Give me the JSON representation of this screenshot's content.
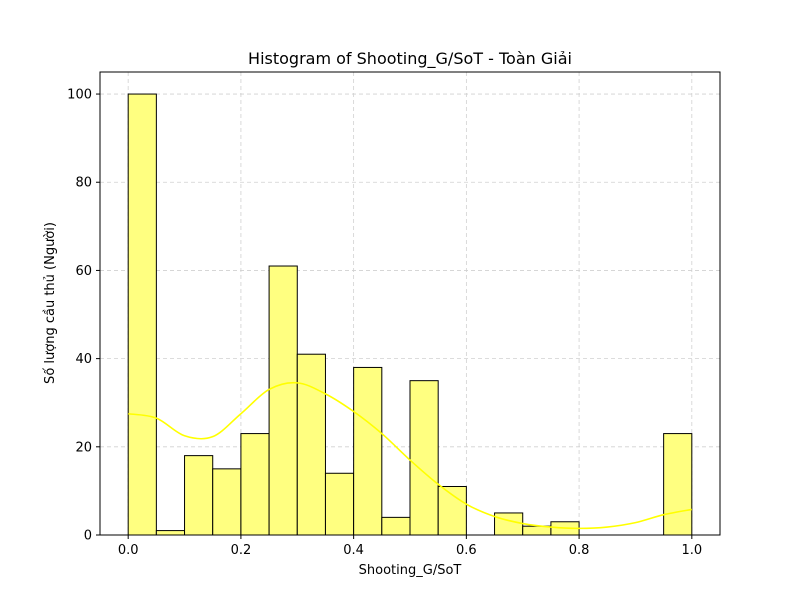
{
  "chart_data": {
    "type": "bar",
    "title": "Histogram of Shooting_G/SoT - Toàn Giải",
    "xlabel": "Shooting_G/SoT",
    "ylabel": "Số lượng cầu thủ (Người)",
    "xlim": [
      -0.05,
      1.05
    ],
    "ylim": [
      0,
      105
    ],
    "grid": true,
    "bin_width": 0.05,
    "bin_starts": [
      0.0,
      0.05,
      0.1,
      0.15,
      0.2,
      0.25,
      0.3,
      0.35,
      0.4,
      0.45,
      0.5,
      0.55,
      0.6,
      0.65,
      0.7,
      0.75,
      0.8,
      0.85,
      0.9,
      0.95
    ],
    "values": [
      100,
      1,
      18,
      15,
      23,
      61,
      41,
      14,
      38,
      4,
      35,
      11,
      0,
      5,
      2,
      3,
      0,
      0,
      0,
      23
    ],
    "x_ticks": [
      "0.0",
      "0.2",
      "0.4",
      "0.6",
      "0.8",
      "1.0"
    ],
    "x_tick_values": [
      0.0,
      0.2,
      0.4,
      0.6,
      0.8,
      1.0
    ],
    "y_ticks": [
      "0",
      "20",
      "40",
      "60",
      "80",
      "100"
    ],
    "y_tick_values": [
      0,
      20,
      40,
      60,
      80,
      100
    ],
    "kde": {
      "x": [
        0.0,
        0.05,
        0.1,
        0.15,
        0.2,
        0.25,
        0.3,
        0.35,
        0.4,
        0.45,
        0.5,
        0.55,
        0.6,
        0.65,
        0.7,
        0.75,
        0.8,
        0.85,
        0.9,
        0.95,
        1.0
      ],
      "y": [
        27.5,
        26.5,
        22.5,
        22.3,
        27.5,
        33.0,
        34.5,
        32.0,
        28.0,
        23.0,
        17.0,
        11.5,
        7.0,
        4.2,
        2.6,
        1.8,
        1.5,
        1.8,
        2.8,
        4.6,
        5.8
      ]
    },
    "colors": {
      "bar_fill": "#ffff80",
      "bar_stroke": "#000000",
      "kde_line": "#ffff00",
      "grid": "#d0d0d0"
    }
  }
}
